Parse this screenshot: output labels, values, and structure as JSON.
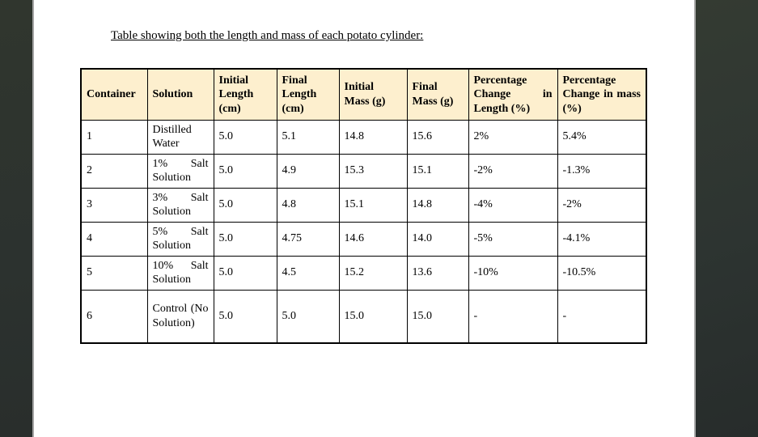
{
  "document": {
    "title": "Table showing both the length and mass of each potato cylinder:"
  },
  "table": {
    "headers": [
      "Container",
      "Solution",
      "Initial Length (cm)",
      "Final Length (cm)",
      "Initial Mass (g)",
      "Final Mass (g)",
      "Percentage Change in Length (%)",
      "Percentage Change in mass (%)"
    ],
    "rows": [
      [
        "1",
        "Distilled Water",
        "5.0",
        "5.1",
        "14.8",
        "15.6",
        "2%",
        "5.4%"
      ],
      [
        "2",
        "1% Salt Solution",
        "5.0",
        "4.9",
        "15.3",
        "15.1",
        "-2%",
        "-1.3%"
      ],
      [
        "3",
        "3% Salt Solution",
        "5.0",
        "4.8",
        "15.1",
        "14.8",
        "-4%",
        "-2%"
      ],
      [
        "4",
        "5% Salt Solution",
        "5.0",
        "4.75",
        "14.6",
        "14.0",
        "-5%",
        "-4.1%"
      ],
      [
        "5",
        "10% Salt Solution",
        "5.0",
        "4.5",
        "15.2",
        "13.6",
        "-10%",
        "-10.5%"
      ],
      [
        "6",
        "Control (No Solution)",
        "5.0",
        "5.0",
        "15.0",
        "15.0",
        "-",
        "-"
      ]
    ]
  },
  "colors": {
    "header_cell_background": "#fdefce",
    "sidebar_dark": "#2c322f",
    "page_background": "#ffffff",
    "table_border": "#000000",
    "page_edge_line": "#a5a5a5"
  }
}
